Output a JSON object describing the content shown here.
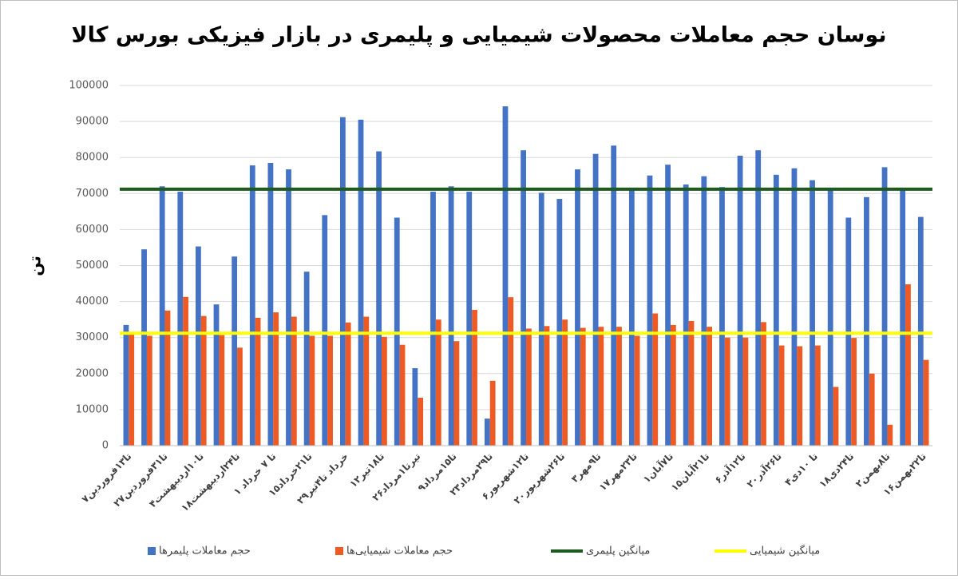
{
  "chart_data": {
    "type": "bar",
    "title": "نوسان حجم معاملات محصولات شیمیایی و پلیمری در بازار فیزیکی بورس کالا",
    "y_label": "تن",
    "categories": [
      "۷تا۱۳فروردین",
      null,
      "۲۷تا۳۱فروردین",
      null,
      "۴تا۱۰اردیبهشت",
      null,
      "۱۸تا۲۴اردیبهشت",
      null,
      "۱ تا ۷ خرداد",
      null,
      "۱۵تا۲۱خرداد",
      null,
      "۲۹خرداد تا۴تیر",
      null,
      "۱۲تا۱۸تیر",
      null,
      "۲۶تیرتا۱مرداد",
      null,
      "۹تا۱۵مرداد",
      null,
      "۲۳تا۲۹مرداد",
      null,
      "۶تا۱۲شهریور",
      null,
      "۲۰تا۲۶شهریور",
      null,
      "۳تا۹مهر",
      null,
      "۱۷تا۲۳مهر",
      null,
      "۱تا۷آبان",
      null,
      "۱۵تا۲۱آبان",
      null,
      "۶تا۱۲آذر",
      null,
      "۲۰تا۲۶آذر",
      null,
      "۴تا ۱۰دی",
      null,
      "۱۸تا۲۴دی",
      null,
      "۲تا۸بهمن",
      null,
      "۱۶تا۲۲بهمن"
    ],
    "series": [
      {
        "name": "حجم معاملات پلیمرها",
        "color": "#4472c4",
        "values": [
          33500,
          54500,
          72000,
          70500,
          55300,
          39200,
          52500,
          77800,
          78500,
          76700,
          48300,
          64000,
          91200,
          90500,
          81700,
          63300,
          21500,
          70500,
          72000,
          70500,
          7500,
          94200,
          82000,
          70200,
          68500,
          76700,
          81000,
          83300,
          71000,
          75000,
          78000,
          72500,
          74800,
          71800,
          80500,
          82000,
          75200,
          77000,
          73700,
          71000,
          63300,
          69000,
          77300,
          71000,
          63500
        ]
      },
      {
        "name": "حجم معاملات شیمیایی‌ها",
        "color": "#ed5a24",
        "values": [
          31000,
          30500,
          37500,
          41300,
          36000,
          30700,
          27200,
          35500,
          37000,
          35800,
          30500,
          30500,
          34200,
          35800,
          30200,
          28000,
          13300,
          35000,
          29000,
          37700,
          18000,
          41200,
          32500,
          33200,
          35000,
          32700,
          33000,
          33000,
          30500,
          36700,
          33500,
          34600,
          33000,
          30000,
          30000,
          34300,
          27800,
          27600,
          27800,
          16300,
          29900,
          20000,
          5800,
          44800,
          23800
        ]
      }
    ],
    "lines": [
      {
        "name": "میانگین پلیمری",
        "color": "#1e5a1e",
        "value": 71200
      },
      {
        "name": "میانگین شیمیایی",
        "color": "#ffff00",
        "value": 31200
      }
    ],
    "ylim": [
      0,
      100000
    ],
    "yticks": [
      0,
      10000,
      20000,
      30000,
      40000,
      50000,
      60000,
      70000,
      80000,
      90000,
      100000
    ],
    "grid": true
  }
}
